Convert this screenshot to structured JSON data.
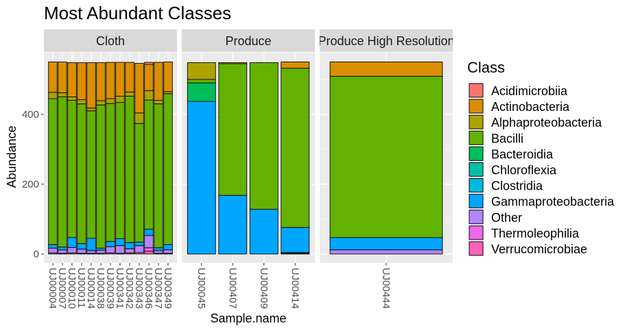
{
  "chart_data": {
    "type": "bar",
    "title": "Most Abundant Classes",
    "xlabel": "Sample.name",
    "ylabel": "Abundance",
    "ylim": [
      0,
      550
    ],
    "yticks": [
      0,
      200,
      400
    ],
    "legend": {
      "title": "Class",
      "position": "right",
      "items": [
        {
          "name": "Acidimicrobiia",
          "color": "#F8766D"
        },
        {
          "name": "Actinobacteria",
          "color": "#DB8E00"
        },
        {
          "name": "Alphaproteobacteria",
          "color": "#AEA200"
        },
        {
          "name": "Bacilli",
          "color": "#64B200"
        },
        {
          "name": "Bacteroidia",
          "color": "#00BD5C"
        },
        {
          "name": "Chloroflexia",
          "color": "#00C1A7"
        },
        {
          "name": "Clostridia",
          "color": "#00BADE"
        },
        {
          "name": "Gammaproteobacteria",
          "color": "#00A6FF"
        },
        {
          "name": "Other",
          "color": "#B385FF"
        },
        {
          "name": "Thermoleophilia",
          "color": "#EF67EB"
        },
        {
          "name": "Verrucomicrobiae",
          "color": "#FF63B6"
        }
      ]
    },
    "facets": [
      {
        "name": "Cloth",
        "samples": [
          {
            "name": "UJ00004",
            "segments": [
              [
                "Verrucomicrobiae",
                3
              ],
              [
                "Other",
                14
              ],
              [
                "Gammaproteobacteria",
                10
              ],
              [
                "Bacilli",
                418
              ],
              [
                "Alphaproteobacteria",
                18
              ],
              [
                "Actinobacteria",
                87
              ]
            ]
          },
          {
            "name": "UJ00007",
            "segments": [
              [
                "Verrucomicrobiae",
                2
              ],
              [
                "Other",
                10
              ],
              [
                "Gammaproteobacteria",
                8
              ],
              [
                "Bacilli",
                430
              ],
              [
                "Alphaproteobacteria",
                12
              ],
              [
                "Actinobacteria",
                88
              ]
            ]
          },
          {
            "name": "UJ00010",
            "segments": [
              [
                "Verrucomicrobiae",
                3
              ],
              [
                "Other",
                16
              ],
              [
                "Gammaproteobacteria",
                28
              ],
              [
                "Bacilli",
                393
              ],
              [
                "Alphaproteobacteria",
                10
              ],
              [
                "Actinobacteria",
                98
              ]
            ]
          },
          {
            "name": "UJ00011",
            "segments": [
              [
                "Verrucomicrobiae",
                2
              ],
              [
                "Other",
                12
              ],
              [
                "Gammaproteobacteria",
                16
              ],
              [
                "Bacilli",
                400
              ],
              [
                "Alphaproteobacteria",
                12
              ],
              [
                "Actinobacteria",
                106
              ]
            ]
          },
          {
            "name": "UJ00014",
            "segments": [
              [
                "Verrucomicrobiae",
                2
              ],
              [
                "Other",
                8
              ],
              [
                "Gammaproteobacteria",
                35
              ],
              [
                "Bacilli",
                365
              ],
              [
                "Alphaproteobacteria",
                8
              ],
              [
                "Actinobacteria",
                130
              ]
            ]
          },
          {
            "name": "UJ00038",
            "segments": [
              [
                "Verrucomicrobiae",
                2
              ],
              [
                "Other",
                9
              ],
              [
                "Gammaproteobacteria",
                6
              ],
              [
                "Bacilli",
                410
              ],
              [
                "Alphaproteobacteria",
                12
              ],
              [
                "Actinobacteria",
                109
              ]
            ]
          },
          {
            "name": "UJ00039",
            "segments": [
              [
                "Verrucomicrobiae",
                3
              ],
              [
                "Other",
                18
              ],
              [
                "Gammaproteobacteria",
                15
              ],
              [
                "Bacilli",
                395
              ],
              [
                "Alphaproteobacteria",
                14
              ],
              [
                "Actinobacteria",
                104
              ]
            ]
          },
          {
            "name": "UJ00341",
            "segments": [
              [
                "Verrucomicrobiae",
                2
              ],
              [
                "Other",
                22
              ],
              [
                "Gammaproteobacteria",
                20
              ],
              [
                "Bacilli",
                390
              ],
              [
                "Alphaproteobacteria",
                18
              ],
              [
                "Actinobacteria",
                97
              ]
            ]
          },
          {
            "name": "UJ00342",
            "segments": [
              [
                "Verrucomicrobiae",
                3
              ],
              [
                "Other",
                12
              ],
              [
                "Gammaproteobacteria",
                18
              ],
              [
                "Bacilli",
                419
              ],
              [
                "Alphaproteobacteria",
                12
              ],
              [
                "Actinobacteria",
                85
              ]
            ]
          },
          {
            "name": "UJ00343",
            "segments": [
              [
                "Verrucomicrobiae",
                4
              ],
              [
                "Other",
                20
              ],
              [
                "Gammaproteobacteria",
                10
              ],
              [
                "Bacilli",
                340
              ],
              [
                "Alphaproteobacteria",
                30
              ],
              [
                "Actinobacteria",
                142
              ]
            ]
          },
          {
            "name": "UJ00346",
            "segments": [
              [
                "Verrucomicrobiae",
                8
              ],
              [
                "Thermoleophilia",
                10
              ],
              [
                "Other",
                35
              ],
              [
                "Gammaproteobacteria",
                18
              ],
              [
                "Bacilli",
                370
              ],
              [
                "Alphaproteobacteria",
                27
              ],
              [
                "Actinobacteria",
                75
              ],
              [
                "Acidimicrobiia",
                6
              ]
            ]
          },
          {
            "name": "UJ00347",
            "segments": [
              [
                "Verrucomicrobiae",
                2
              ],
              [
                "Other",
                8
              ],
              [
                "Gammaproteobacteria",
                8
              ],
              [
                "Bacilli",
                412
              ],
              [
                "Alphaproteobacteria",
                10
              ],
              [
                "Actinobacteria",
                109
              ]
            ]
          },
          {
            "name": "UJ00349",
            "segments": [
              [
                "Verrucomicrobiae",
                2
              ],
              [
                "Other",
                10
              ],
              [
                "Gammaproteobacteria",
                15
              ],
              [
                "Bacilli",
                432
              ],
              [
                "Alphaproteobacteria",
                6
              ],
              [
                "Actinobacteria",
                85
              ]
            ]
          }
        ]
      },
      {
        "name": "Produce",
        "samples": [
          {
            "name": "UJ00045",
            "segments": [
              [
                "Gammaproteobacteria",
                437
              ],
              [
                "Bacteroidia",
                53
              ],
              [
                "Bacilli",
                10
              ],
              [
                "Alphaproteobacteria",
                48
              ]
            ]
          },
          {
            "name": "UJ00407",
            "segments": [
              [
                "Gammaproteobacteria",
                168
              ],
              [
                "Bacilli",
                377
              ],
              [
                "Alphaproteobacteria",
                3
              ]
            ]
          },
          {
            "name": "UJ00409",
            "segments": [
              [
                "Gammaproteobacteria",
                128
              ],
              [
                "Bacilli",
                420
              ]
            ]
          },
          {
            "name": "UJ00414",
            "segments": [
              [
                "Verrucomicrobiae",
                2
              ],
              [
                "Thermoleophilia",
                2
              ],
              [
                "Gammaproteobacteria",
                72
              ],
              [
                "Bacilli",
                456
              ],
              [
                "Actinobacteria",
                18
              ]
            ]
          }
        ]
      },
      {
        "name": "Produce High Resolution",
        "samples": [
          {
            "name": "UJ00444",
            "segments": [
              [
                "Other",
                12
              ],
              [
                "Gammaproteobacteria",
                35
              ],
              [
                "Bacilli",
                462
              ],
              [
                "Actinobacteria",
                41
              ]
            ]
          }
        ]
      }
    ]
  }
}
